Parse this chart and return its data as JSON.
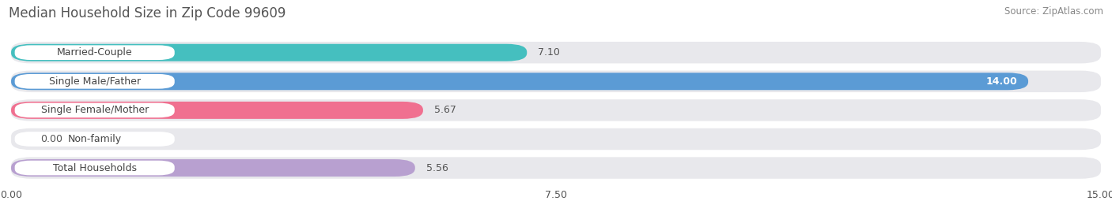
{
  "title": "Median Household Size in Zip Code 99609",
  "source": "Source: ZipAtlas.com",
  "categories": [
    "Married-Couple",
    "Single Male/Father",
    "Single Female/Mother",
    "Non-family",
    "Total Households"
  ],
  "values": [
    7.1,
    14.0,
    5.67,
    0.0,
    5.56
  ],
  "bar_colors": [
    "#45bfbf",
    "#5b9bd5",
    "#f07090",
    "#f5c897",
    "#b8a0d0"
  ],
  "xlim": [
    0,
    15.0
  ],
  "xticks": [
    0.0,
    7.5,
    15.0
  ],
  "background_color": "#ffffff",
  "bar_bg_color": "#e8e8ec",
  "title_fontsize": 12,
  "source_fontsize": 8.5,
  "label_fontsize": 9,
  "value_fontsize": 9,
  "tick_fontsize": 9,
  "value_14_color": "#ffffff",
  "value_other_color": "#555555",
  "label_text_color": "#444444"
}
